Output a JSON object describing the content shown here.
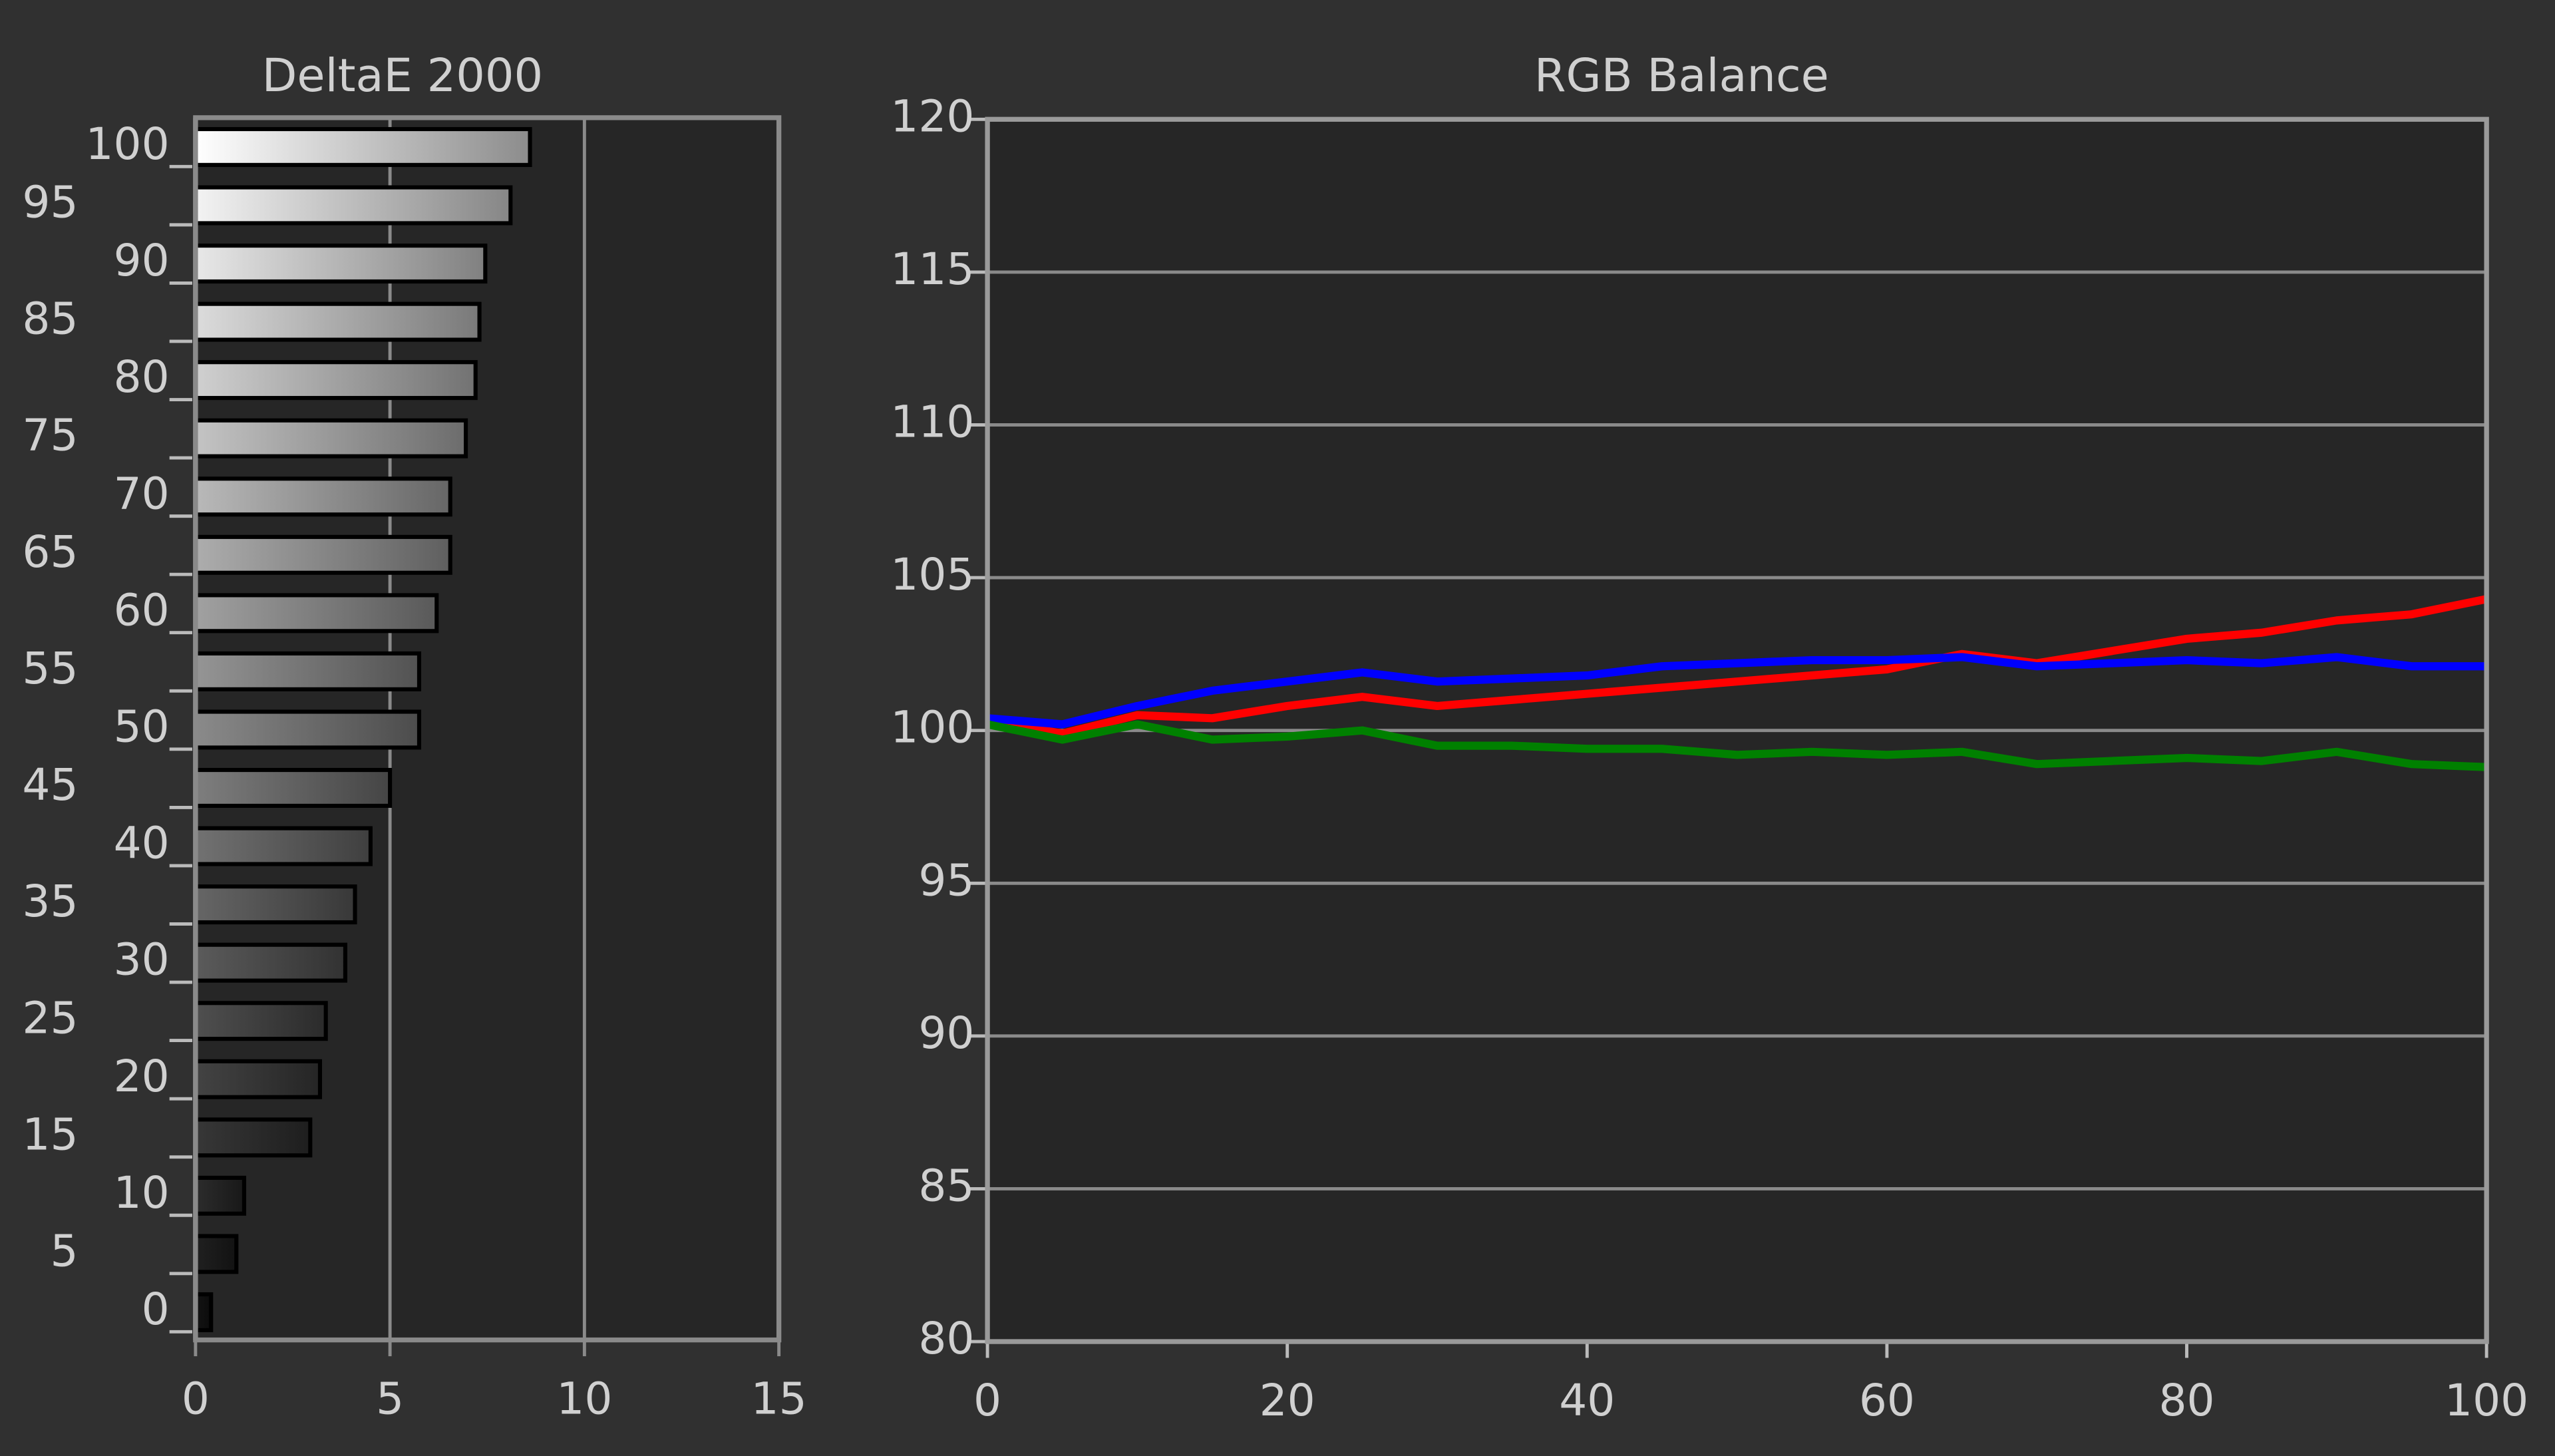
{
  "chart_data": [
    {
      "type": "hbar",
      "title": "DeltaE 2000",
      "categories": [
        0,
        5,
        10,
        15,
        20,
        25,
        30,
        35,
        40,
        45,
        50,
        55,
        60,
        65,
        70,
        75,
        80,
        85,
        90,
        95,
        100
      ],
      "values": [
        0.4,
        1.05,
        1.25,
        2.95,
        3.2,
        3.35,
        3.85,
        4.1,
        4.5,
        5.0,
        5.75,
        5.75,
        6.2,
        6.55,
        6.55,
        6.95,
        7.2,
        7.3,
        7.45,
        8.1,
        8.6
      ],
      "xlim": [
        0,
        15
      ],
      "xticks": [
        0,
        5,
        10,
        15
      ],
      "grid": true
    },
    {
      "type": "line",
      "title": "RGB Balance",
      "x": [
        0,
        5,
        10,
        15,
        20,
        25,
        30,
        35,
        40,
        45,
        50,
        55,
        60,
        65,
        70,
        75,
        80,
        85,
        90,
        95,
        100
      ],
      "series": [
        {
          "color": "#ff0000",
          "values": [
            100.3,
            99.9,
            100.5,
            100.4,
            100.8,
            101.1,
            100.8,
            101.0,
            101.2,
            101.4,
            101.6,
            101.8,
            102.0,
            102.5,
            102.2,
            102.6,
            103.0,
            103.2,
            103.6,
            103.8,
            104.3
          ]
        },
        {
          "color": "#0000ff",
          "values": [
            100.4,
            100.2,
            100.8,
            101.3,
            101.6,
            101.9,
            101.6,
            101.7,
            101.8,
            102.1,
            102.2,
            102.3,
            102.3,
            102.4,
            102.1,
            102.2,
            102.3,
            102.2,
            102.4,
            102.1,
            102.1
          ]
        },
        {
          "color": "#008000",
          "values": [
            100.2,
            99.7,
            100.2,
            99.7,
            99.8,
            100.0,
            99.5,
            99.5,
            99.4,
            99.4,
            99.2,
            99.3,
            99.2,
            99.3,
            98.9,
            99.0,
            99.1,
            99.0,
            99.3,
            98.9,
            98.8
          ]
        }
      ],
      "xlim": [
        0,
        100
      ],
      "xticks": [
        0,
        20,
        40,
        60,
        80,
        100
      ],
      "ylim": [
        80,
        120
      ],
      "yticks": [
        80,
        85,
        90,
        95,
        100,
        105,
        110,
        115,
        120
      ],
      "grid": true
    }
  ]
}
